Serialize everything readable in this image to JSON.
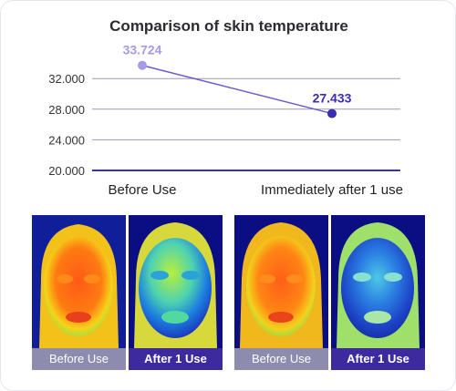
{
  "chart_data": {
    "type": "line",
    "title": "Comparison of skin temperature",
    "categories": [
      "Before Use",
      "Immediately after 1 use"
    ],
    "series": [
      {
        "values": [
          33.724,
          27.433
        ]
      }
    ],
    "data_labels": [
      "33.724",
      "27.433"
    ],
    "yticks": [
      "20.000",
      "24.000",
      "28.000",
      "32.000"
    ],
    "ytick_values": [
      20,
      24,
      28,
      32
    ],
    "ylim": [
      20,
      35
    ],
    "grid": true,
    "colors": {
      "before": "#a79ae6",
      "after": "#3b2db0",
      "line": "#6a5ccc",
      "grid": "#9f9ab8",
      "baseline": "#3a3790"
    }
  },
  "photos": {
    "captions": [
      "Before Use",
      "After 1 Use",
      "Before Use",
      "After 1 Use"
    ]
  }
}
